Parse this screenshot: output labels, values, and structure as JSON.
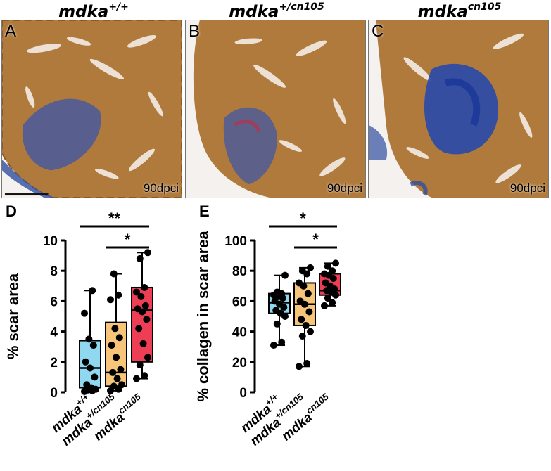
{
  "genotypes": [
    {
      "base": "mdka",
      "sup": "+/+"
    },
    {
      "base": "mdka",
      "sup": "+/cn105"
    },
    {
      "base": "mdka",
      "sup": "cn105"
    }
  ],
  "histology_panels": [
    {
      "letter": "A",
      "timepoint": "90dpci",
      "scar_extent": "small"
    },
    {
      "letter": "B",
      "timepoint": "90dpci",
      "scar_extent": "small"
    },
    {
      "letter": "C",
      "timepoint": "90dpci",
      "scar_extent": "large"
    }
  ],
  "colors": {
    "muscle": "#b07a3c",
    "collagen": "#2f4fa0",
    "wt_box": "#8fd8ef",
    "het_box": "#f7c57a",
    "mut_box": "#ee3e55"
  },
  "chart_data": [
    {
      "type": "box",
      "panel_letter": "D",
      "ylabel": "% scar area",
      "ylim": [
        0,
        10
      ],
      "yticks": [
        0,
        2,
        4,
        6,
        8,
        10
      ],
      "categories": [
        {
          "base": "mdka",
          "sup": "+/+"
        },
        {
          "base": "mdka",
          "sup": "+/cn105"
        },
        {
          "base": "mdka",
          "sup": "cn105"
        }
      ],
      "boxes": [
        {
          "min": 0.05,
          "q1": 0.3,
          "median": 1.6,
          "q3": 3.4,
          "max": 6.7,
          "points": [
            0.05,
            0.1,
            0.15,
            0.2,
            0.3,
            0.5,
            1.0,
            1.6,
            2.0,
            3.1,
            3.5,
            5.2,
            6.7
          ]
        },
        {
          "min": 0.1,
          "q1": 0.4,
          "median": 1.3,
          "q3": 4.6,
          "max": 7.8,
          "points": [
            0.1,
            0.2,
            0.4,
            0.5,
            0.9,
            1.3,
            1.5,
            2.3,
            3.1,
            3.6,
            4.2,
            6.1,
            6.4,
            7.8
          ]
        },
        {
          "min": 0.9,
          "q1": 2.0,
          "median": 5.4,
          "q3": 6.9,
          "max": 9.2,
          "points": [
            0.9,
            1.1,
            1.8,
            2.3,
            3.2,
            4.2,
            4.8,
            5.3,
            5.5,
            5.7,
            6.3,
            6.6,
            6.9,
            8.8,
            9.2
          ]
        }
      ],
      "significance": [
        {
          "from": 0,
          "to": 2,
          "label": "**"
        },
        {
          "from": 1,
          "to": 2,
          "label": "*"
        }
      ]
    },
    {
      "type": "box",
      "panel_letter": "E",
      "ylabel": "% collagen in scar area",
      "ylim": [
        0,
        100
      ],
      "yticks": [
        0,
        20,
        40,
        60,
        80,
        100
      ],
      "categories": [
        {
          "base": "mdka",
          "sup": "+/+"
        },
        {
          "base": "mdka",
          "sup": "+/cn105"
        },
        {
          "base": "mdka",
          "sup": "cn105"
        }
      ],
      "boxes": [
        {
          "min": 31,
          "q1": 52,
          "median": 59,
          "q3": 65,
          "max": 77,
          "points": [
            31,
            33,
            45,
            50,
            52,
            54,
            56,
            58,
            60,
            62,
            63,
            64,
            65,
            66,
            77
          ]
        },
        {
          "min": 17,
          "q1": 44,
          "median": 58,
          "q3": 72,
          "max": 82,
          "points": [
            17,
            19,
            37,
            40,
            44,
            48,
            53,
            58,
            60,
            65,
            70,
            72,
            78,
            80,
            82
          ]
        },
        {
          "min": 57,
          "q1": 64,
          "median": 67,
          "q3": 78,
          "max": 85,
          "points": [
            57,
            59,
            62,
            64,
            66,
            67,
            68,
            70,
            72,
            75,
            77,
            78,
            80,
            83,
            85
          ]
        }
      ],
      "significance": [
        {
          "from": 0,
          "to": 2,
          "label": "*"
        },
        {
          "from": 1,
          "to": 2,
          "label": "*"
        }
      ]
    }
  ]
}
